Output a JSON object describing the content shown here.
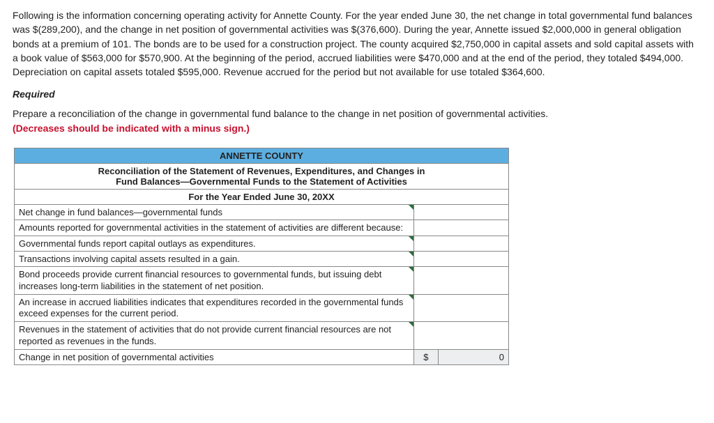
{
  "problem": {
    "paragraph": "Following is the information concerning operating activity for Annette County. For the year ended June 30, the net change in total governmental fund balances was $(289,200), and the change in net position of governmental activities was $(376,600). During the year, Annette issued $2,000,000 in general obligation bonds at a premium of 101. The bonds are to be used for a construction project. The county acquired $2,750,000 in capital assets and sold capital assets with a book value of $563,000 for $570,900. At the beginning of the period, accrued liabilities were $470,000 and at the end of the period, they totaled $494,000. Depreciation on capital assets totaled $595,000. Revenue accrued for the period but not available for use totaled $364,600.",
    "required_label": "Required",
    "instructions_plain": "Prepare a reconciliation of the change in governmental fund balance to the change in net position of governmental activities.",
    "instructions_red": "(Decreases should be indicated with a minus sign.)"
  },
  "table": {
    "title": "ANNETTE COUNTY",
    "subtitle1": "Reconciliation of the Statement of Revenues, Expenditures, and Changes in",
    "subtitle2": "Fund Balances—Governmental Funds to the Statement of Activities",
    "period": "For the Year Ended June 30, 20XX",
    "rows": {
      "r0": {
        "label": "Net change in fund balances—governmental funds",
        "value": ""
      },
      "r1": {
        "label": "Amounts reported for governmental activities in the statement of activities are different because:"
      },
      "r2": {
        "label": "Governmental funds report capital outlays as expenditures.",
        "value": ""
      },
      "r3": {
        "label": "Transactions involving capital assets resulted in a gain.",
        "value": ""
      },
      "r4": {
        "label": "Bond proceeds provide current financial resources to governmental funds, but issuing debt increases long-term liabilities in the statement of net position.",
        "value": ""
      },
      "r5": {
        "label": "An increase in accrued liabilities indicates that expenditures recorded in the governmental funds exceed expenses for the current period.",
        "value": ""
      },
      "r6": {
        "label": "Revenues in the statement of activities that do not provide current financial resources are not reported as revenues in the funds.",
        "value": ""
      },
      "r7": {
        "label": "Change in net position of governmental activities",
        "currency": "$",
        "total": "0"
      }
    }
  },
  "colors": {
    "header_blue": "#5daee0",
    "corner_triangle": "#2e6b3a",
    "red": "#c8102e",
    "sum_bg": "#eceeef"
  }
}
